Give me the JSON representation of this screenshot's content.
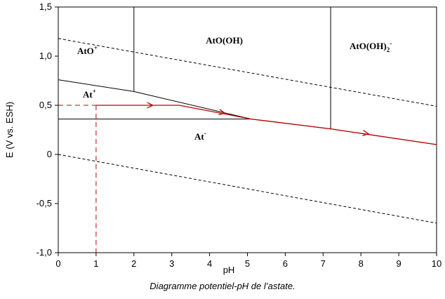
{
  "caption": "Diagramme potentiel-pH de l’astate.",
  "chart_data": {
    "type": "line",
    "xlabel": "pH",
    "ylabel": "E (V vs. ESH)",
    "xlim": [
      0,
      10
    ],
    "ylim": [
      -1.0,
      1.5
    ],
    "x_ticks": [
      "0",
      "1",
      "2",
      "3",
      "4",
      "5",
      "6",
      "7",
      "8",
      "9",
      "10"
    ],
    "y_ticks": [
      "-1,0",
      "-0,5",
      "0",
      "0,5",
      "1,0",
      "1,5"
    ],
    "grid": false,
    "boundaries": [
      {
        "points": [
          [
            0,
            0.76
          ],
          [
            2.0,
            0.64
          ]
        ]
      },
      {
        "points": [
          [
            2.0,
            0.64
          ],
          [
            5.1,
            0.36
          ]
        ]
      },
      {
        "points": [
          [
            0,
            0.36
          ],
          [
            5.1,
            0.36
          ]
        ]
      },
      {
        "points": [
          [
            5.1,
            0.36
          ],
          [
            7.2,
            0.26
          ]
        ]
      },
      {
        "points": [
          [
            7.2,
            0.26
          ],
          [
            10,
            0.1
          ]
        ]
      },
      {
        "points": [
          [
            2.0,
            0.64
          ],
          [
            2.0,
            1.5
          ]
        ]
      },
      {
        "points": [
          [
            7.2,
            0.26
          ],
          [
            7.2,
            1.5
          ]
        ]
      }
    ],
    "water_lines": [
      {
        "points": [
          [
            0,
            1.18
          ],
          [
            10,
            0.49
          ]
        ]
      },
      {
        "points": [
          [
            0,
            0.0
          ],
          [
            10,
            -0.7
          ]
        ]
      }
    ],
    "annotation_path": {
      "color": "#c00000",
      "points": [
        [
          0,
          0.5
        ],
        [
          3.2,
          0.5
        ],
        [
          5.1,
          0.36
        ],
        [
          7.2,
          0.26
        ],
        [
          10,
          0.1
        ]
      ],
      "arrows_at": [
        [
          2.5,
          0.5
        ],
        [
          4.4,
          0.42
        ],
        [
          8.2,
          0.21
        ]
      ]
    },
    "annotation_vertical": {
      "color": "#c00000",
      "x": 1,
      "from": -1.0,
      "to": 0.5
    },
    "regions": [
      {
        "base": "AtO",
        "sup": "+",
        "x": 0.5,
        "y": 1.02
      },
      {
        "base": "AtO(OH)",
        "sup": "",
        "x": 3.9,
        "y": 1.13
      },
      {
        "base": "AtO(OH)",
        "sub": "2",
        "sup": "-",
        "x": 7.7,
        "y": 1.07
      },
      {
        "base": "At",
        "sup": "+",
        "x": 0.65,
        "y": 0.58
      },
      {
        "base": "At",
        "sup": "-",
        "x": 3.6,
        "y": 0.15
      }
    ]
  }
}
